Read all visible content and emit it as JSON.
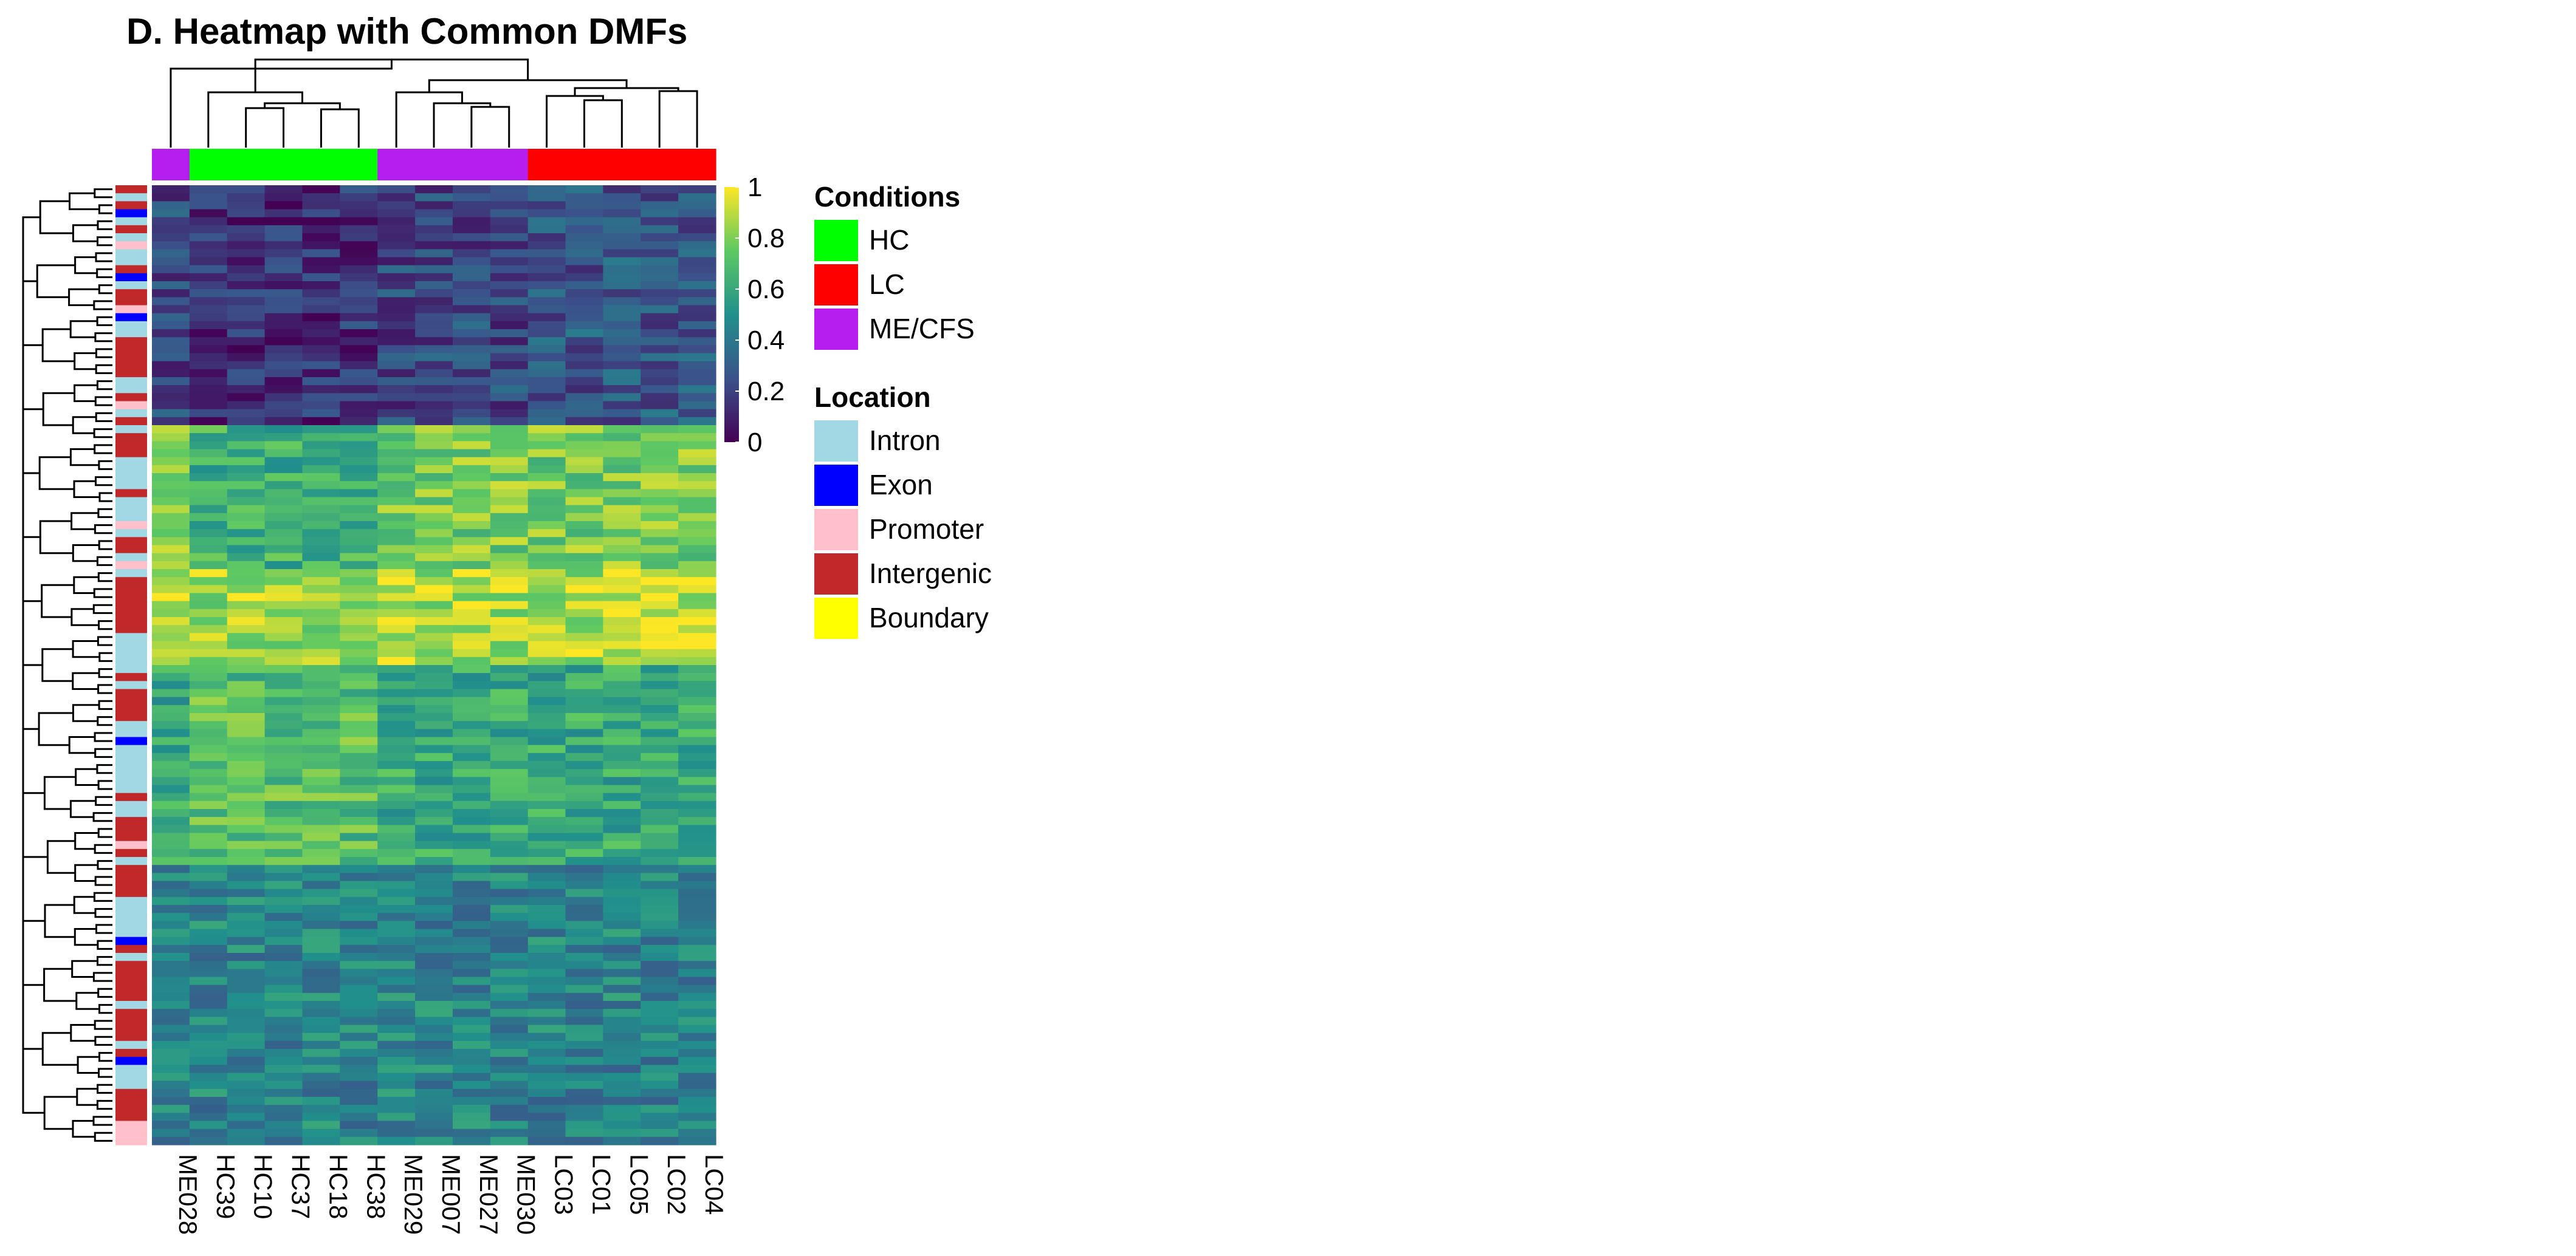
{
  "title": "D. Heatmap with Common DMFs",
  "chart_data": {
    "type": "heatmap",
    "title": "D. Heatmap with Common DMFs",
    "columns": [
      "ME028",
      "HC39",
      "HC10",
      "HC37",
      "HC18",
      "HC38",
      "ME029",
      "ME007",
      "ME027",
      "ME030",
      "LC03",
      "LC01",
      "LC05",
      "LC02",
      "LC04"
    ],
    "column_conditions": [
      "ME/CFS",
      "HC",
      "HC",
      "HC",
      "HC",
      "HC",
      "ME/CFS",
      "ME/CFS",
      "ME/CFS",
      "ME/CFS",
      "LC",
      "LC",
      "LC",
      "LC",
      "LC"
    ],
    "row_count": 120,
    "row_locations": [
      "Intergenic",
      "Intron",
      "Intergenic",
      "Exon",
      "Intron",
      "Intergenic",
      "Intron",
      "Promoter",
      "Intron",
      "Intron",
      "Intergenic",
      "Exon",
      "Intron",
      "Intergenic",
      "Intergenic",
      "Promoter",
      "Exon",
      "Intron",
      "Intron",
      "Intergenic",
      "Intergenic",
      "Intergenic",
      "Intergenic",
      "Intergenic",
      "Intron",
      "Intron",
      "Intergenic",
      "Promoter",
      "Intron",
      "Intergenic",
      "Intron",
      "Intergenic",
      "Intergenic",
      "Intergenic",
      "Intron",
      "Intron",
      "Intron",
      "Intron",
      "Intergenic",
      "Intron",
      "Intron",
      "Intron",
      "Promoter",
      "Intron",
      "Intergenic",
      "Intergenic",
      "Intron",
      "Promoter",
      "Intron",
      "Intergenic",
      "Intergenic",
      "Intergenic",
      "Intergenic",
      "Intergenic",
      "Intergenic",
      "Intergenic",
      "Intron",
      "Intron",
      "Intron",
      "Intron",
      "Intron",
      "Intergenic",
      "Intron",
      "Intergenic",
      "Intergenic",
      "Intergenic",
      "Intergenic",
      "Intron",
      "Intron",
      "Exon",
      "Intron",
      "Intron",
      "Intron",
      "Intron",
      "Intron",
      "Intron",
      "Intergenic",
      "Intron",
      "Intron",
      "Intergenic",
      "Intergenic",
      "Intergenic",
      "Promoter",
      "Intergenic",
      "Intron",
      "Intergenic",
      "Intergenic",
      "Intergenic",
      "Intergenic",
      "Intron",
      "Intron",
      "Intron",
      "Intron",
      "Intron",
      "Exon",
      "Intergenic",
      "Intron",
      "Intergenic",
      "Intergenic",
      "Intergenic",
      "Intergenic",
      "Intergenic",
      "Intron",
      "Intergenic",
      "Intergenic",
      "Intergenic",
      "Intergenic",
      "Intron",
      "Intergenic",
      "Exon",
      "Intron",
      "Intron",
      "Intron",
      "Intergenic",
      "Intergenic",
      "Intergenic",
      "Intergenic",
      "Promoter",
      "Promoter",
      "Promoter"
    ],
    "row_group_base": [
      0.22,
      0.7,
      0.82,
      0.65,
      0.45
    ],
    "value_range": [
      0,
      1
    ],
    "colorbar": {
      "ticks": [
        "1",
        "0.8",
        "0.6",
        "0.4",
        "0.2",
        "0"
      ],
      "colors": [
        "#440154",
        "#3B528B",
        "#21908C",
        "#5DC863",
        "#FDE725"
      ]
    },
    "legend": {
      "conditions_title": "Conditions",
      "conditions": [
        {
          "label": "HC",
          "color": "#00FF00"
        },
        {
          "label": "LC",
          "color": "#FF0000"
        },
        {
          "label": "ME/CFS",
          "color": "#B61EF0"
        }
      ],
      "location_title": "Location",
      "locations": [
        {
          "label": "Intron",
          "color": "#A1D8E3"
        },
        {
          "label": "Exon",
          "color": "#0000FF"
        },
        {
          "label": "Promoter",
          "color": "#FFC0CB"
        },
        {
          "label": "Intergenic",
          "color": "#C0282A"
        },
        {
          "label": "Boundary",
          "color": "#FFFF00"
        }
      ]
    }
  }
}
